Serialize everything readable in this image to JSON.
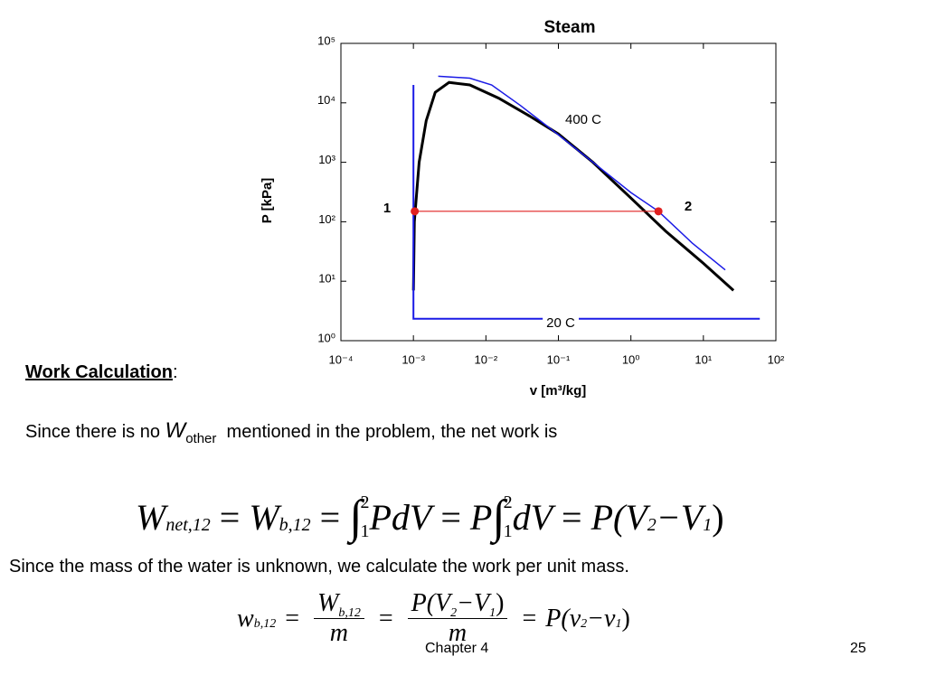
{
  "chart_data": {
    "type": "line",
    "title": "Steam",
    "xlabel": "v [m³/kg]",
    "ylabel": "P [kPa]",
    "xscale": "log",
    "yscale": "log",
    "xlim": [
      0.0001,
      100
    ],
    "ylim": [
      1,
      100000
    ],
    "xticks": [
      {
        "value": 0.0001,
        "label": "10⁻⁴"
      },
      {
        "value": 0.001,
        "label": "10⁻³"
      },
      {
        "value": 0.01,
        "label": "10⁻²"
      },
      {
        "value": 0.1,
        "label": "10⁻¹"
      },
      {
        "value": 1,
        "label": "10⁰"
      },
      {
        "value": 10,
        "label": "10¹"
      },
      {
        "value": 100,
        "label": "10²"
      }
    ],
    "yticks": [
      {
        "value": 1,
        "label": "10⁰"
      },
      {
        "value": 10,
        "label": "10¹"
      },
      {
        "value": 100,
        "label": "10²"
      },
      {
        "value": 1000,
        "label": "10³"
      },
      {
        "value": 10000,
        "label": "10⁴"
      },
      {
        "value": 100000,
        "label": "10⁵"
      }
    ],
    "series": [
      {
        "color": "#000000",
        "x": [
          0.001,
          0.00103,
          0.0012,
          0.0015,
          0.002,
          0.0031,
          0.006,
          0.015,
          0.04,
          0.1,
          0.3,
          1,
          3,
          10,
          26
        ],
        "values": [
          7,
          100,
          1000,
          5000,
          15000,
          22064,
          20000,
          12000,
          6000,
          3000,
          1000,
          250,
          70,
          20,
          7
        ]
      },
      {
        "color": "#1a1ae6",
        "x": [
          0.0022,
          0.006,
          0.012,
          0.03,
          0.1,
          0.3,
          1,
          2.4,
          7,
          20
        ],
        "values": [
          28000,
          26000,
          20000,
          9000,
          2900,
          1000,
          310,
          150,
          44,
          15.5
        ]
      },
      {
        "color": "#1a1ae6",
        "x": [
          0.001,
          0.001,
          60
        ],
        "values": [
          20000,
          2.34,
          2.34
        ]
      },
      {
        "color": "#e02020",
        "x": [
          0.001043,
          2.4
        ],
        "values": [
          150,
          150
        ]
      }
    ],
    "annotations": [
      "400 C",
      "20 C",
      "1",
      "2"
    ]
  },
  "slide": {
    "heading": "Work Calculation",
    "colon": ":",
    "line1": [
      "Since there is no",
      "W",
      "other",
      "mentioned in the problem, the net work is"
    ],
    "equation1": [
      "W",
      "net,12",
      "=",
      "W",
      "b,12",
      "=",
      "∫",
      "2",
      "1",
      "PdV",
      "=",
      "P",
      "∫",
      "2",
      "1",
      "dV",
      "=",
      "P(V",
      "2",
      "−V",
      "1",
      ")"
    ],
    "line2": "Since the mass of the water is unknown, we calculate the work per unit mass.",
    "equation2": [
      "w",
      "b,12",
      "=",
      "W",
      "b,12",
      "m",
      "=",
      "P(V",
      "2",
      "−V",
      "1",
      ")",
      "m",
      "=",
      "P(v",
      "2",
      "−v",
      "1",
      ")"
    ],
    "footer": "Chapter 4",
    "page": "25"
  }
}
